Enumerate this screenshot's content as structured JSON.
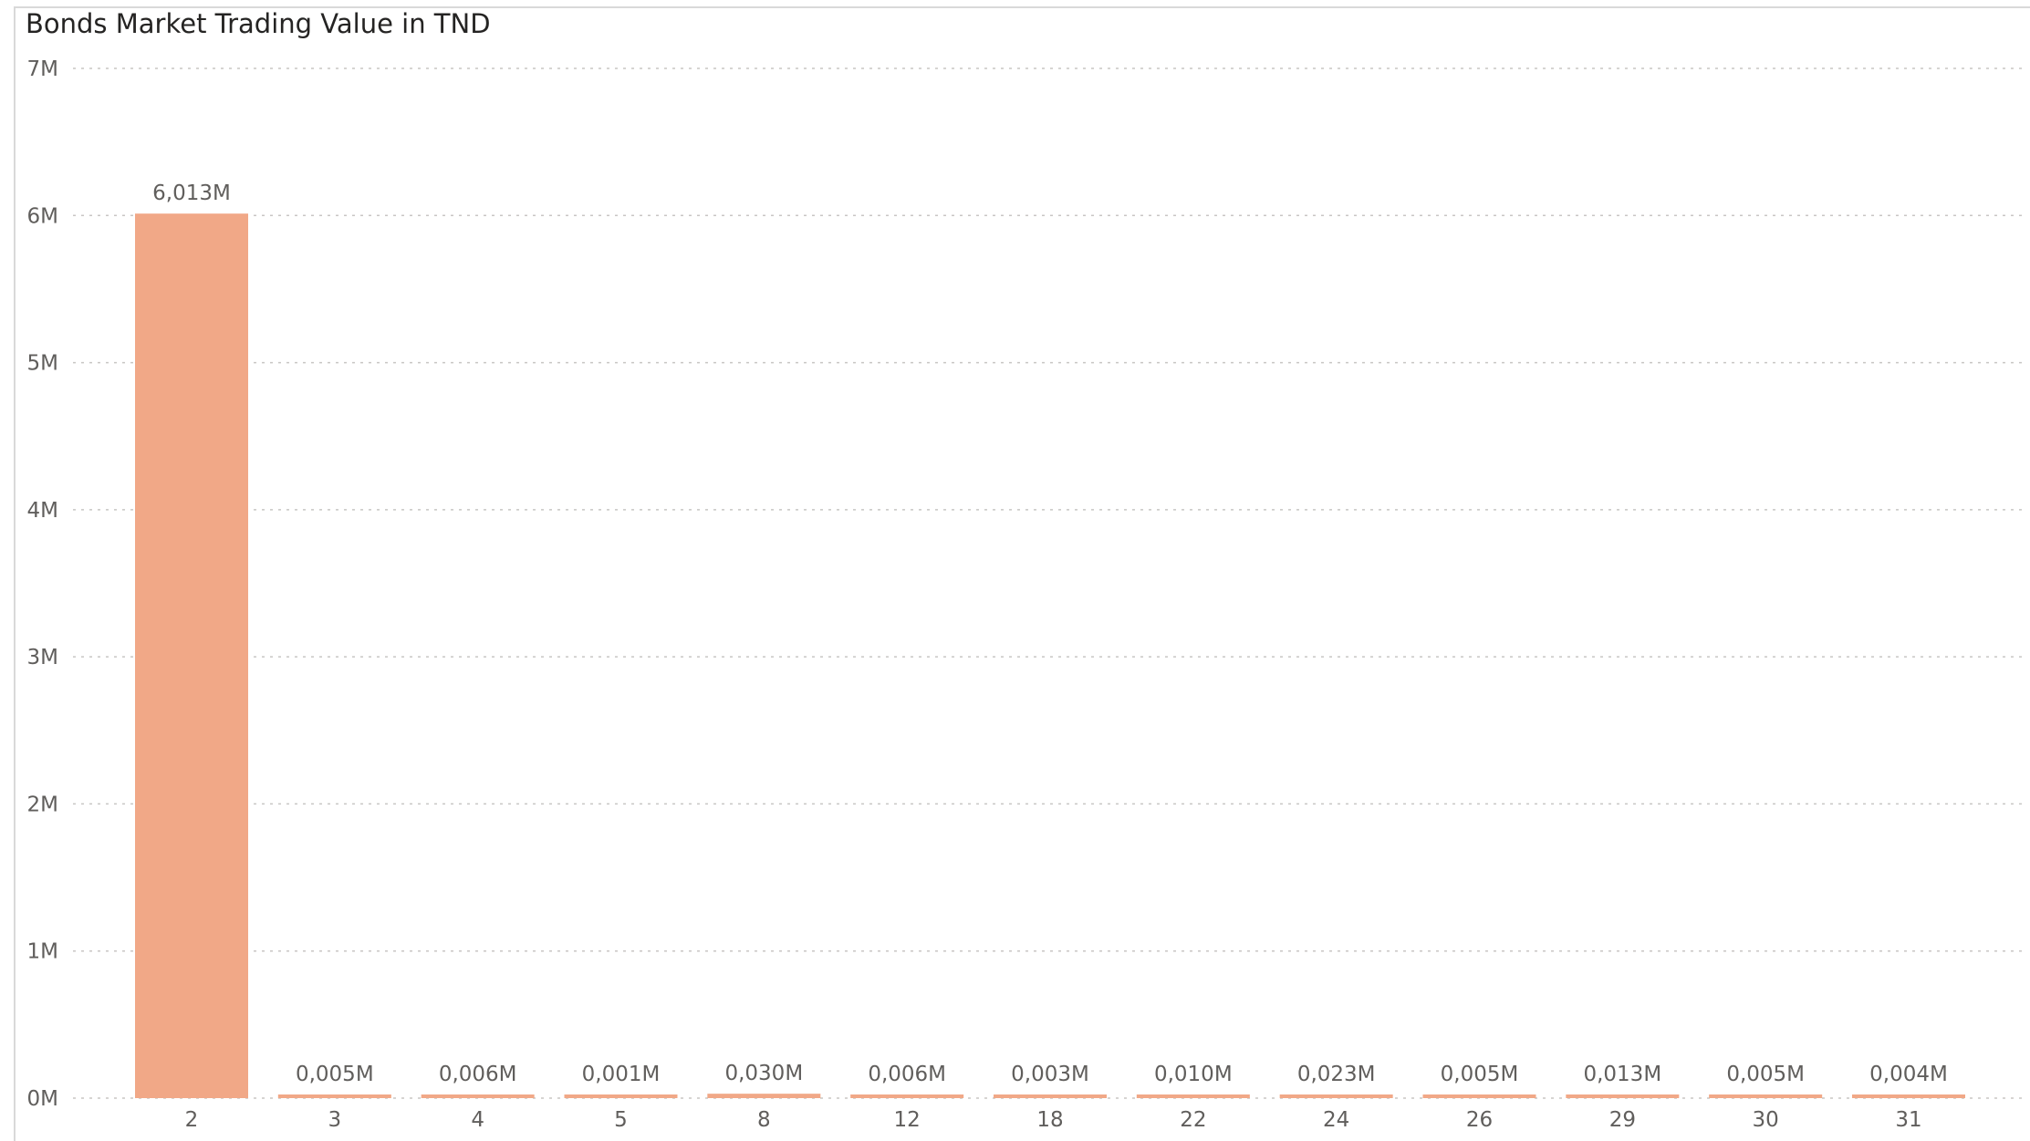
{
  "chart_data": {
    "type": "bar",
    "title": "Bonds Market Trading Value in TND",
    "xlabel": "",
    "ylabel": "",
    "categories": [
      "2",
      "3",
      "4",
      "5",
      "8",
      "12",
      "18",
      "22",
      "24",
      "26",
      "29",
      "30",
      "31"
    ],
    "values": [
      6.013,
      0.005,
      0.006,
      0.001,
      0.03,
      0.006,
      0.003,
      0.01,
      0.023,
      0.005,
      0.013,
      0.005,
      0.004
    ],
    "data_labels": [
      "6,013M",
      "0,005M",
      "0,006M",
      "0,001M",
      "0,030M",
      "0,006M",
      "0,003M",
      "0,010M",
      "0,023M",
      "0,005M",
      "0,013M",
      "0,005M",
      "0,004M"
    ],
    "value_unit": "M",
    "ylim": [
      0,
      7
    ],
    "yticks": [
      0,
      1,
      2,
      3,
      4,
      5,
      6,
      7
    ],
    "ytick_labels": [
      "0M",
      "1M",
      "2M",
      "3M",
      "4M",
      "5M",
      "6M",
      "7M"
    ],
    "grid": true,
    "bar_color": "#f1a887",
    "gridline_color": "#c8c6c4",
    "text_color": "#605e5c"
  }
}
